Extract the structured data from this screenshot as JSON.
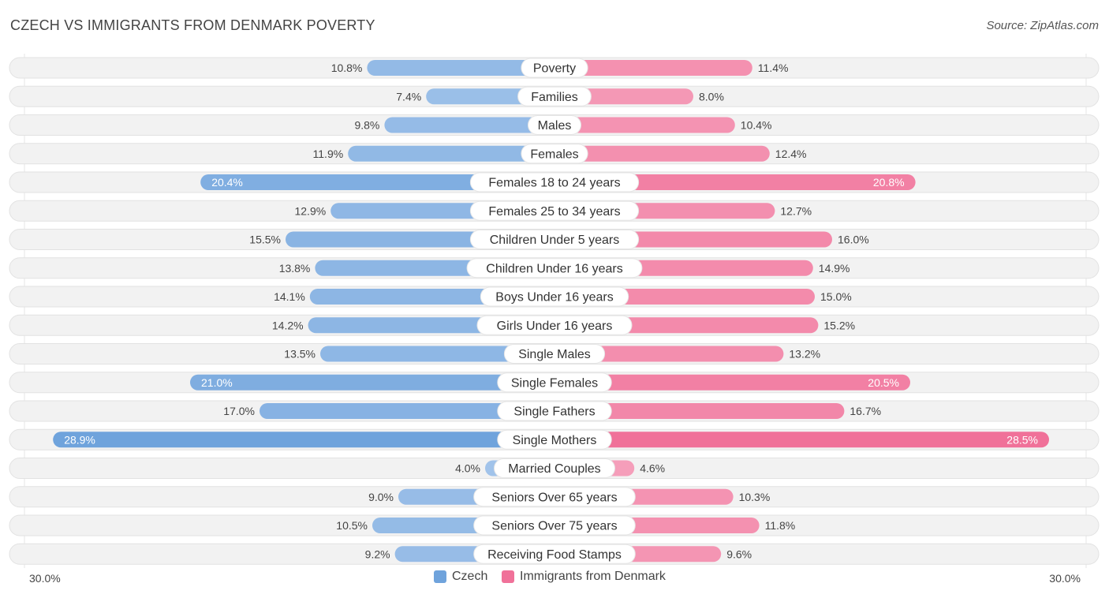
{
  "title": "CZECH VS IMMIGRANTS FROM DENMARK POVERTY",
  "source": "Source: ZipAtlas.com",
  "colors": {
    "czech": "#6fa3dc",
    "czech_light": "#a9c8ec",
    "denmark": "#f07199",
    "denmark_light": "#f6a7c0",
    "track": "#f0f0f0"
  },
  "chart_data": {
    "type": "bar",
    "orientation": "horizontal-diverging",
    "categories": [
      "Poverty",
      "Families",
      "Males",
      "Females",
      "Females 18 to 24 years",
      "Females 25 to 34 years",
      "Children Under 5 years",
      "Children Under 16 years",
      "Boys Under 16 years",
      "Girls Under 16 years",
      "Single Males",
      "Single Females",
      "Single Fathers",
      "Single Mothers",
      "Married Couples",
      "Seniors Over 65 years",
      "Seniors Over 75 years",
      "Receiving Food Stamps"
    ],
    "series": [
      {
        "name": "Czech",
        "values": [
          10.8,
          7.4,
          9.8,
          11.9,
          20.4,
          12.9,
          15.5,
          13.8,
          14.1,
          14.2,
          13.5,
          21.0,
          17.0,
          28.9,
          4.0,
          9.0,
          10.5,
          9.2
        ],
        "labels": [
          "10.8%",
          "7.4%",
          "9.8%",
          "11.9%",
          "20.4%",
          "12.9%",
          "15.5%",
          "13.8%",
          "14.1%",
          "14.2%",
          "13.5%",
          "21.0%",
          "17.0%",
          "28.9%",
          "4.0%",
          "9.0%",
          "10.5%",
          "9.2%"
        ]
      },
      {
        "name": "Immigrants from Denmark",
        "values": [
          11.4,
          8.0,
          10.4,
          12.4,
          20.8,
          12.7,
          16.0,
          14.9,
          15.0,
          15.2,
          13.2,
          20.5,
          16.7,
          28.5,
          4.6,
          10.3,
          11.8,
          9.6
        ],
        "labels": [
          "11.4%",
          "8.0%",
          "10.4%",
          "12.4%",
          "20.8%",
          "12.7%",
          "16.0%",
          "14.9%",
          "15.0%",
          "15.2%",
          "13.2%",
          "20.5%",
          "16.7%",
          "28.5%",
          "4.6%",
          "10.3%",
          "11.8%",
          "9.6%"
        ]
      }
    ],
    "axis_max": 30.0,
    "axis_left_label": "30.0%",
    "axis_right_label": "30.0%",
    "legend": [
      "Czech",
      "Immigrants from Denmark"
    ],
    "legend_position": "bottom-center"
  }
}
